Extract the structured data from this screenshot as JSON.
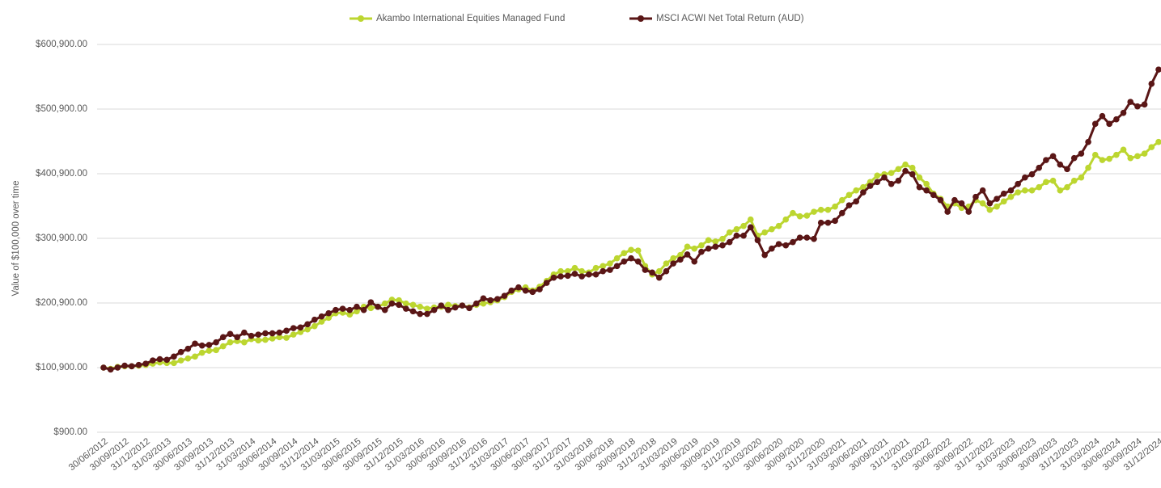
{
  "chart_data": {
    "type": "line",
    "y_label": "Value of $100,000 over time",
    "categories": [
      "30/06/2012",
      null,
      null,
      "30/09/2012",
      null,
      null,
      "31/12/2012",
      null,
      null,
      "31/03/2013",
      null,
      null,
      "30/06/2013",
      null,
      null,
      "30/09/2013",
      null,
      null,
      "31/12/2013",
      null,
      null,
      "31/03/2014",
      null,
      null,
      "30/06/2014",
      null,
      null,
      "30/09/2014",
      null,
      null,
      "31/12/2014",
      null,
      null,
      "31/03/2015",
      null,
      null,
      "30/06/2015",
      null,
      null,
      "30/09/2015",
      null,
      null,
      "31/12/2015",
      null,
      null,
      "31/03/2016",
      null,
      null,
      "30/06/2016",
      null,
      null,
      "30/09/2016",
      null,
      null,
      "31/12/2016",
      null,
      null,
      "31/03/2017",
      null,
      null,
      "30/06/2017",
      null,
      null,
      "30/09/2017",
      null,
      null,
      "31/12/2017",
      null,
      null,
      "31/03/2018",
      null,
      null,
      "30/06/2018",
      null,
      null,
      "30/09/2018",
      null,
      null,
      "31/12/2018",
      null,
      null,
      "31/03/2019",
      null,
      null,
      "30/06/2019",
      null,
      null,
      "30/09/2019",
      null,
      null,
      "31/12/2019",
      null,
      null,
      "31/03/2020",
      null,
      null,
      "30/06/2020",
      null,
      null,
      "30/09/2020",
      null,
      null,
      "31/12/2020",
      null,
      null,
      "31/03/2021",
      null,
      null,
      "30/06/2021",
      null,
      null,
      "30/09/2021",
      null,
      null,
      "31/12/2021",
      null,
      null,
      "31/03/2022",
      null,
      null,
      "30/06/2022",
      null,
      null,
      "30/09/2022",
      null,
      null,
      "31/12/2022",
      null,
      null,
      "31/03/2023",
      null,
      null,
      "30/06/2023",
      null,
      null,
      "30/09/2023",
      null,
      null,
      "31/12/2023",
      null,
      null,
      "31/03/2024",
      null,
      null,
      "30/06/2024",
      null,
      null,
      "30/09/2024",
      null,
      null,
      "31/12/2024"
    ],
    "series": [
      {
        "name": "Akambo International Equities Managed Fund",
        "color": "#bcd630",
        "values": [
          100900,
          99000,
          102000,
          103000,
          103000,
          104000,
          105000,
          107000,
          109000,
          108000,
          108000,
          112000,
          115000,
          118000,
          124000,
          127000,
          128000,
          134000,
          140000,
          142000,
          140000,
          145000,
          143000,
          144000,
          146000,
          148000,
          147000,
          152000,
          156000,
          160000,
          165000,
          172000,
          178000,
          185000,
          186000,
          183000,
          188000,
          195000,
          193000,
          195000,
          200000,
          206000,
          205000,
          200000,
          198000,
          195000,
          192000,
          194000,
          195000,
          198000,
          196000,
          197000,
          194000,
          198000,
          200000,
          202000,
          205000,
          210000,
          218000,
          222000,
          225000,
          220000,
          226000,
          235000,
          245000,
          250000,
          250000,
          255000,
          250000,
          248000,
          255000,
          258000,
          262000,
          270000,
          278000,
          283000,
          282000,
          258000,
          245000,
          250000,
          262000,
          270000,
          275000,
          288000,
          285000,
          290000,
          298000,
          296000,
          300000,
          310000,
          315000,
          320000,
          330000,
          305000,
          310000,
          315000,
          320000,
          330000,
          340000,
          335000,
          336000,
          342000,
          345000,
          345000,
          350000,
          360000,
          368000,
          375000,
          380000,
          388000,
          398000,
          400000,
          402000,
          408000,
          415000,
          410000,
          395000,
          385000,
          370000,
          362000,
          350000,
          355000,
          348000,
          350000,
          360000,
          355000,
          345000,
          350000,
          358000,
          365000,
          372000,
          375000,
          375000,
          380000,
          388000,
          390000,
          375000,
          380000,
          390000,
          395000,
          410000,
          430000,
          422000,
          424000,
          430000,
          438000,
          425000,
          428000,
          432000,
          442000,
          450000
        ]
      },
      {
        "name": "MSCI ACWI Net Total Return (AUD)",
        "color": "#5a1616",
        "values": [
          100900,
          98000,
          101000,
          104000,
          103000,
          105000,
          107000,
          112000,
          114000,
          113000,
          118000,
          125000,
          130000,
          138000,
          135000,
          136000,
          140000,
          148000,
          153000,
          148000,
          155000,
          150000,
          152000,
          154000,
          154000,
          155000,
          158000,
          162000,
          163000,
          168000,
          175000,
          180000,
          185000,
          190000,
          192000,
          190000,
          195000,
          190000,
          202000,
          195000,
          190000,
          200000,
          198000,
          192000,
          188000,
          184000,
          184000,
          190000,
          197000,
          190000,
          194000,
          197000,
          193000,
          200000,
          208000,
          205000,
          207000,
          212000,
          220000,
          225000,
          220000,
          218000,
          222000,
          232000,
          240000,
          242000,
          243000,
          246000,
          242000,
          245000,
          245000,
          250000,
          252000,
          258000,
          265000,
          270000,
          265000,
          252000,
          248000,
          240000,
          250000,
          262000,
          268000,
          276000,
          265000,
          280000,
          285000,
          288000,
          290000,
          295000,
          305000,
          305000,
          318000,
          298000,
          275000,
          285000,
          292000,
          290000,
          295000,
          302000,
          302000,
          300000,
          325000,
          325000,
          328000,
          340000,
          352000,
          358000,
          372000,
          382000,
          388000,
          395000,
          385000,
          390000,
          405000,
          400000,
          380000,
          375000,
          368000,
          360000,
          342000,
          360000,
          355000,
          342000,
          365000,
          375000,
          355000,
          362000,
          370000,
          375000,
          385000,
          395000,
          400000,
          410000,
          422000,
          428000,
          415000,
          408000,
          425000,
          432000,
          450000,
          478000,
          490000,
          478000,
          485000,
          495000,
          512000,
          505000,
          508000,
          540000,
          562000
        ]
      }
    ],
    "ylim": [
      900,
      600900
    ],
    "yticks": [
      {
        "value": 900,
        "label": "$900.00"
      },
      {
        "value": 100900,
        "label": "$100,900.00"
      },
      {
        "value": 200900,
        "label": "$200,900.00"
      },
      {
        "value": 300900,
        "label": "$300,900.00"
      },
      {
        "value": 400900,
        "label": "$400,900.00"
      },
      {
        "value": 500900,
        "label": "$500,900.00"
      },
      {
        "value": 600900,
        "label": "$600,900.00"
      }
    ],
    "grid": true,
    "legend": "top"
  }
}
